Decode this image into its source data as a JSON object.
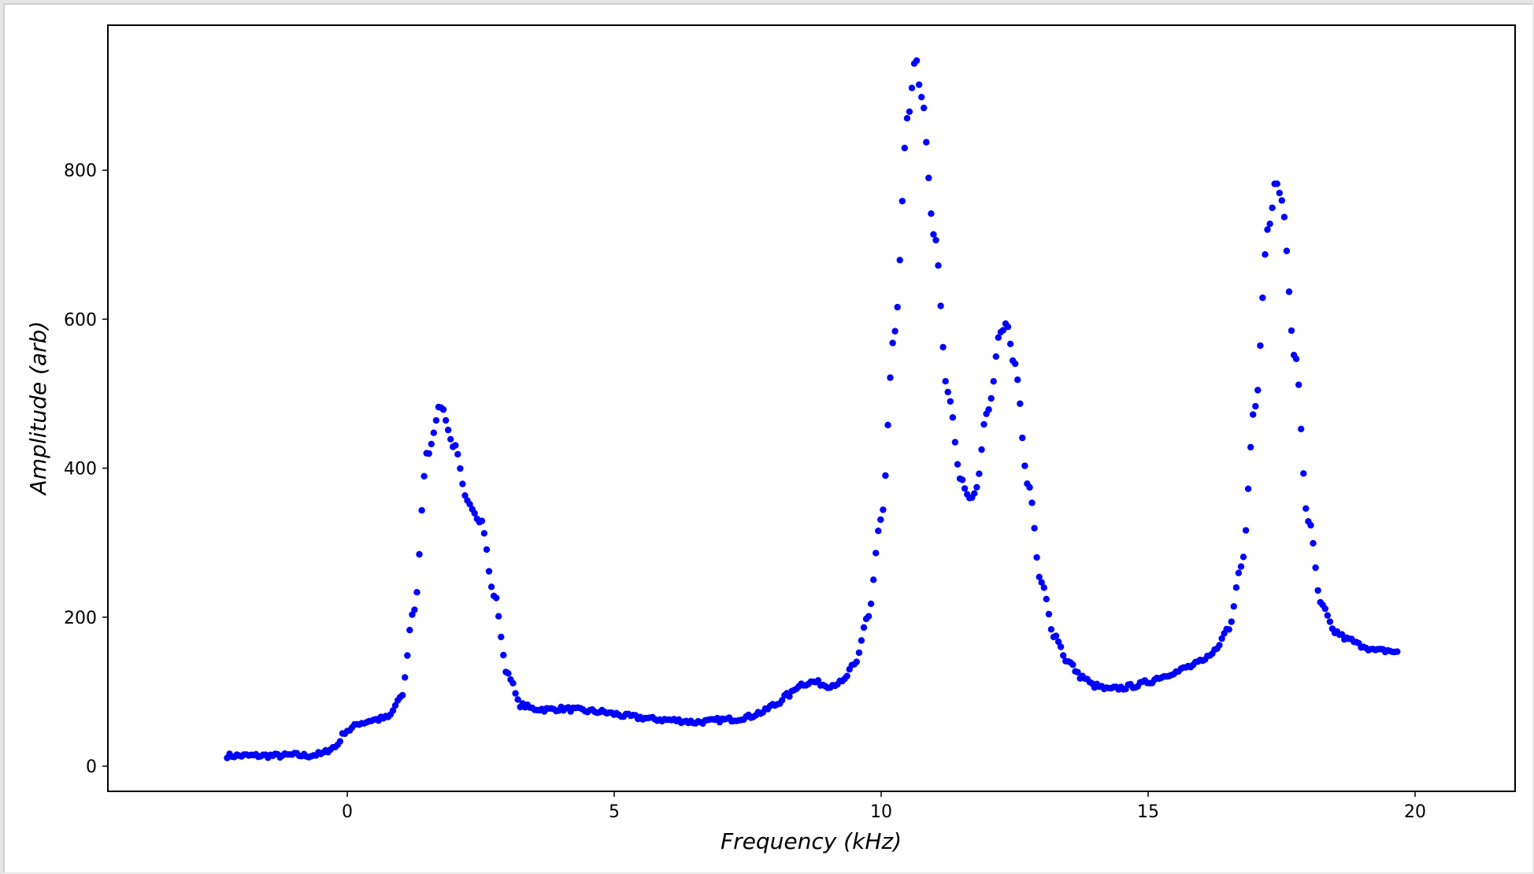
{
  "chart_data": {
    "type": "scatter",
    "title": "",
    "xlabel": "Frequency (kHz)",
    "ylabel": "Amplitude (arb)",
    "xlim": [
      -4.5,
      21.9
    ],
    "ylim": [
      -33,
      1000
    ],
    "x_ticks": [
      0,
      5,
      10,
      15,
      20
    ],
    "y_ticks": [
      0,
      200,
      400,
      600,
      800
    ],
    "grid": false,
    "legend": null,
    "marker_color": "#0000ff",
    "series": [
      {
        "name": "amplitude",
        "x": [
          -2.25,
          -2,
          -1.75,
          -1.5,
          -1.25,
          -1,
          -0.75,
          -0.5,
          -0.25,
          0,
          0.25,
          0.5,
          0.75,
          1,
          1.25,
          1.5,
          1.75,
          2,
          2.25,
          2.5,
          2.75,
          3,
          3.25,
          3.5,
          3.75,
          4,
          4.25,
          4.5,
          4.75,
          5,
          5.25,
          5.5,
          5.75,
          6,
          6.25,
          6.5,
          6.75,
          7,
          7.25,
          7.5,
          7.75,
          8,
          8.25,
          8.5,
          8.75,
          9,
          9.25,
          9.5,
          9.75,
          10,
          10.25,
          10.5,
          10.65,
          10.75,
          11,
          11.25,
          11.5,
          11.65,
          11.75,
          12,
          12.25,
          12.35,
          12.5,
          12.75,
          13,
          13.25,
          13.5,
          13.75,
          14,
          14.25,
          14.5,
          14.75,
          15,
          15.25,
          15.5,
          15.75,
          16,
          16.25,
          16.5,
          16.75,
          17,
          17.25,
          17.4,
          17.5,
          17.75,
          18,
          18.25,
          18.5,
          18.75,
          19,
          19.25,
          19.5,
          19.7
        ],
        "y": [
          14,
          14,
          14,
          14,
          14,
          15,
          14,
          16,
          25,
          48,
          58,
          62,
          65,
          90,
          210,
          420,
          483,
          430,
          355,
          330,
          230,
          125,
          82,
          77,
          76,
          77,
          76,
          74,
          73,
          70,
          67,
          65,
          63,
          62,
          61,
          59,
          60,
          62,
          63,
          66,
          72,
          82,
          95,
          110,
          113,
          108,
          112,
          135,
          200,
          330,
          580,
          870,
          948,
          900,
          710,
          500,
          385,
          358,
          365,
          480,
          585,
          592,
          540,
          380,
          245,
          175,
          140,
          120,
          108,
          103,
          105,
          108,
          113,
          120,
          126,
          133,
          140,
          155,
          185,
          270,
          480,
          720,
          785,
          760,
          550,
          330,
          215,
          180,
          170,
          162,
          155,
          155,
          152
        ]
      }
    ],
    "annotations": []
  },
  "axes": {
    "xlabel": "Frequency (kHz)",
    "ylabel": "Amplitude (arb)",
    "x_tick_labels": [
      "0",
      "5",
      "10",
      "15",
      "20"
    ],
    "y_tick_labels": [
      "0",
      "200",
      "400",
      "600",
      "800"
    ]
  }
}
